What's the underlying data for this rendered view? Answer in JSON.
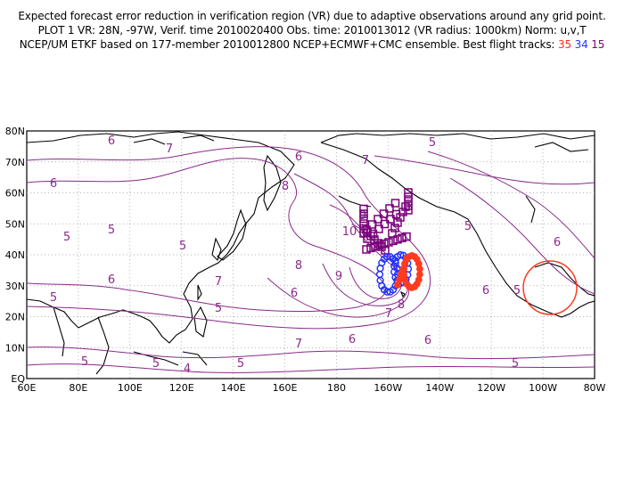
{
  "header": {
    "line1": "Expected forecast error reduction in verification region (VR) due to adaptive observations around any grid point.",
    "line2": "PLOT 1 VR: 28N, -97W, Verif. time 2010020400 Obs. time: 2010013012 (VR radius: 1000km) Norm: u,v,T",
    "line3_prefix": "NCEP/UM ETKF based on 177-member 2010012800 NCEP+ECMWF+CMC ensemble. Best flight tracks:",
    "track_35": "35",
    "track_34": "34",
    "track_15": "15"
  },
  "map": {
    "lon_range": [
      "60E",
      "80W"
    ],
    "lat_range": [
      "0",
      "80N"
    ],
    "lat_labels": [
      "80N",
      "70N",
      "60N",
      "50N",
      "40N",
      "30N",
      "20N",
      "10N",
      "EQ"
    ],
    "lon_labels": [
      "60E",
      "80E",
      "100E",
      "120E",
      "140E",
      "160E",
      "180",
      "160W",
      "140W",
      "120W",
      "100W",
      "80W"
    ],
    "grid": "dotted",
    "coastline_color": "#000000",
    "contour_color": "#8a2a8a",
    "contour_labels": [
      "4",
      "5",
      "6",
      "7",
      "8",
      "9",
      "10"
    ],
    "verification_region": {
      "center": "28N, -97W",
      "color": "#ff3b1f"
    },
    "tracks": [
      {
        "label": "35",
        "color": "#ff3b1f",
        "marker": "filled-circle"
      },
      {
        "label": "34",
        "color": "#2233ff",
        "marker": "open-circle"
      },
      {
        "label": "15",
        "color": "#7a007a",
        "marker": "open-square"
      }
    ]
  }
}
